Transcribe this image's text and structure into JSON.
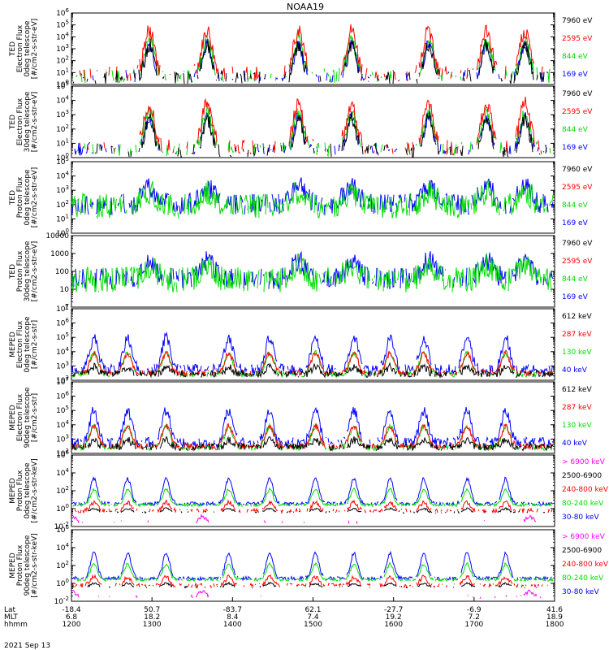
{
  "title": "NOAA19",
  "colors": {
    "blue": "#0000ff",
    "red": "#ff0000",
    "green": "#00dd00",
    "black": "#000000",
    "magenta": "#ff00ff"
  },
  "chart_data": [
    {
      "type": "line",
      "ylabel": [
        "TED",
        "Electron Flux",
        "0deg telescope",
        "[#/cm2-s-str-eV]"
      ],
      "log": true,
      "ytick_labels": [
        "10^0",
        "10^1",
        "10^2",
        "10^3",
        "10^4",
        "10^5",
        "10^6"
      ],
      "series": [
        {
          "name": "7960 eV",
          "color": "black"
        },
        {
          "name": "2595 eV",
          "color": "red"
        },
        {
          "name": "844 eV",
          "color": "green"
        },
        {
          "name": "169 eV",
          "color": "blue"
        }
      ]
    },
    {
      "type": "line",
      "ylabel": [
        "TED",
        "Electron Flux",
        "30deg telescope",
        "[#/cm2-s-str-eV]"
      ],
      "log": true,
      "ytick_labels": [
        "10^0",
        "10^1",
        "10^2",
        "10^3",
        "10^4",
        "10^5"
      ],
      "series": [
        {
          "name": "7960 eV",
          "color": "black"
        },
        {
          "name": "2595 eV",
          "color": "red"
        },
        {
          "name": "844 eV",
          "color": "green"
        },
        {
          "name": "169 eV",
          "color": "blue"
        }
      ]
    },
    {
      "type": "line",
      "ylabel": [
        "TED",
        "Proton Flux",
        "0deg telescope",
        "[#/cm2-s-str-eV]"
      ],
      "log": true,
      "ytick_labels": [
        "10^0",
        "10^1",
        "10^2",
        "10^3",
        "10^4",
        "10^5"
      ],
      "series": [
        {
          "name": "7960 eV",
          "color": "black"
        },
        {
          "name": "2595 eV",
          "color": "red"
        },
        {
          "name": "844 eV",
          "color": "green"
        },
        {
          "name": "169 eV",
          "color": "blue"
        }
      ]
    },
    {
      "type": "line",
      "ylabel": [
        "TED",
        "Proton Flux",
        "30deg telescope",
        "[#/cm2-s-str-eV]"
      ],
      "log": true,
      "ytick_labels": [
        "1",
        "10",
        "100",
        "1000",
        "10000"
      ],
      "series": [
        {
          "name": "7960 eV",
          "color": "black"
        },
        {
          "name": "2595 eV",
          "color": "red"
        },
        {
          "name": "844 eV",
          "color": "green"
        },
        {
          "name": "169 eV",
          "color": "blue"
        }
      ]
    },
    {
      "type": "line",
      "ylabel": [
        "MEPED",
        "Electron Flux",
        "0deg telescope",
        "[#/cm2-s-str]"
      ],
      "log": true,
      "ytick_labels": [
        "10^2",
        "10^3",
        "10^4",
        "10^5",
        "10^6",
        "10^7"
      ],
      "series": [
        {
          "name": "612 keV",
          "color": "black"
        },
        {
          "name": "287 keV",
          "color": "red"
        },
        {
          "name": "130 keV",
          "color": "green"
        },
        {
          "name": "40 keV",
          "color": "blue"
        }
      ]
    },
    {
      "type": "line",
      "ylabel": [
        "MEPED",
        "Electron Flux",
        "90deg telescope",
        "[#/cm2-s-str]"
      ],
      "log": true,
      "ytick_labels": [
        "10^2",
        "10^3",
        "10^4",
        "10^5",
        "10^6",
        "10^7"
      ],
      "series": [
        {
          "name": "612 keV",
          "color": "black"
        },
        {
          "name": "287 keV",
          "color": "red"
        },
        {
          "name": "130 keV",
          "color": "green"
        },
        {
          "name": "40 keV",
          "color": "blue"
        }
      ]
    },
    {
      "type": "line",
      "ylabel": [
        "MEPED",
        "Proton Flux",
        "0deg telescope",
        "[#/cm2-s-str-keV]"
      ],
      "log": true,
      "ytick_labels": [
        "10^-2",
        "10^0",
        "10^2",
        "10^4",
        "10^6"
      ],
      "series": [
        {
          "name": "> 6900 keV",
          "color": "magenta"
        },
        {
          "name": "2500-6900",
          "color": "black"
        },
        {
          "name": "240-800 keV",
          "color": "red"
        },
        {
          "name": "80-240 keV",
          "color": "green"
        },
        {
          "name": "30-80 keV",
          "color": "blue"
        }
      ]
    },
    {
      "type": "line",
      "ylabel": [
        "MEPED",
        "Proton Flux",
        "90deg telescope",
        "[#/cm2-s-str-keV]"
      ],
      "log": true,
      "ytick_labels": [
        "10^-2",
        "10^0",
        "10^2",
        "10^4",
        "10^6"
      ],
      "series": [
        {
          "name": "> 6900 keV",
          "color": "magenta"
        },
        {
          "name": "2500-6900",
          "color": "black"
        },
        {
          "name": "240-800 keV",
          "color": "red"
        },
        {
          "name": "80-240 keV",
          "color": "green"
        },
        {
          "name": "30-80 keV",
          "color": "blue"
        }
      ]
    }
  ],
  "x_axis": {
    "row_labels": [
      "Lat",
      "MLT",
      "hhmm"
    ],
    "ticks": [
      {
        "lat": "-18.4",
        "mlt": "6.8",
        "hhmm": "1200"
      },
      {
        "lat": "50.7",
        "mlt": "18.2",
        "hhmm": "1300"
      },
      {
        "lat": "-83.7",
        "mlt": "8.4",
        "hhmm": "1400"
      },
      {
        "lat": "62.1",
        "mlt": "7.4",
        "hhmm": "1500"
      },
      {
        "lat": "-27.7",
        "mlt": "19.2",
        "hhmm": "1600"
      },
      {
        "lat": "-6.9",
        "mlt": "7.2",
        "hhmm": "1700"
      },
      {
        "lat": "41.6",
        "mlt": "18.9",
        "hhmm": "1800"
      }
    ]
  },
  "date": "2021 Sep 13"
}
